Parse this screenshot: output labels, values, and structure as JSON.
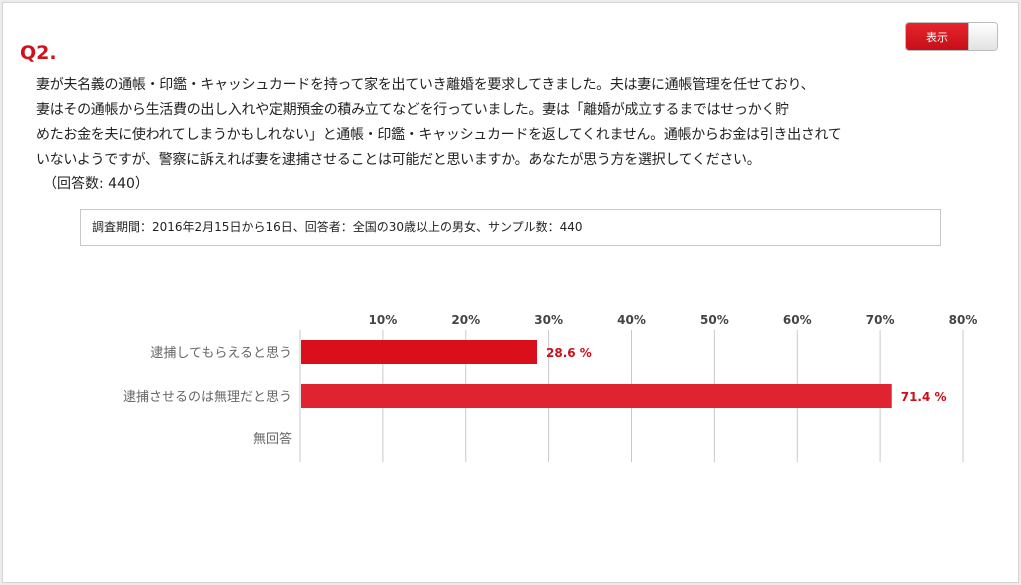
{
  "question": {
    "label": "Q2.",
    "lines": [
      "妻が夫名義の通帳・印鑑・キャッシュカードを持って家を出ていき離婚を要求してきました。夫は妻に通帳管理を任せており、",
      "妻はその通帳から生活費の出し入れや定期預金の積み立てなどを行っていました。妻は「離婚が成立するまではせっかく貯",
      "めたお金を夫に使われてしまうかもしれない」と通帳・印鑑・キャッシュカードを返してくれません。通帳からお金は引き出されて",
      "いないようですが、警察に訴えれば妻を逮捕させることは可能だと思いますか。あなたが思う方を選択してください。"
    ],
    "answers_count": "（回答数: 440）"
  },
  "toggle": {
    "label": "表示"
  },
  "survey_info": "調査期間：2016年2月15日から16日、回答者：全国の30歳以上の男女、サンプル数：440",
  "colors": {
    "accent": "#d0121b",
    "bar1": "#d9101b",
    "bar2": "#df2330",
    "label_red": "#c8101a"
  },
  "chart_data": {
    "type": "bar",
    "orientation": "horizontal",
    "categories": [
      "逮捕してもらえると思う",
      "逮捕させるのは無理だと思う",
      "無回答"
    ],
    "values": [
      28.6,
      71.4,
      0
    ],
    "value_labels": [
      "28.6 %",
      "71.4 %",
      ""
    ],
    "xlim": [
      0,
      80
    ],
    "ticks": [
      "10%",
      "20%",
      "30%",
      "40%",
      "50%",
      "60%",
      "70%",
      "80%"
    ],
    "tick_values": [
      10,
      20,
      30,
      40,
      50,
      60,
      70,
      80
    ],
    "title": "",
    "xlabel": "",
    "ylabel": "",
    "grid": true
  }
}
